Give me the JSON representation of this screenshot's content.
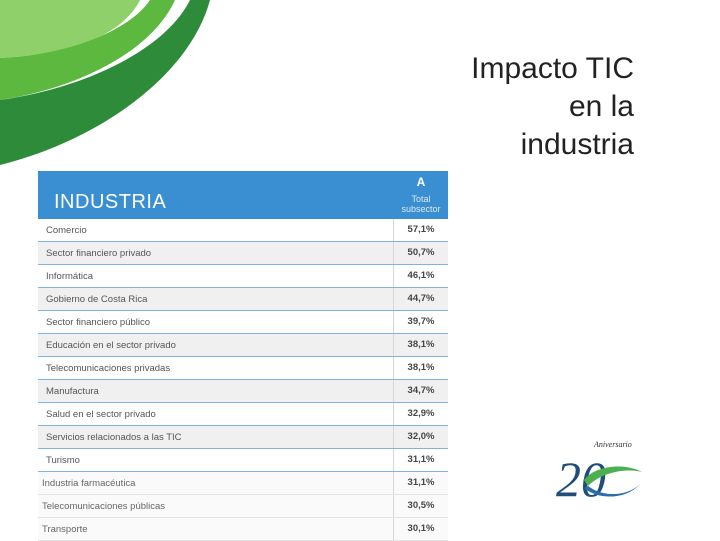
{
  "slide": {
    "title_lines": [
      "Impacto TIC",
      "en la",
      "industria"
    ]
  },
  "table": {
    "header_label": "INDUSTRIA",
    "column_letter": "A",
    "column_sub_1": "Total",
    "column_sub_2": "subsector",
    "rows": [
      {
        "label": "Comercio",
        "value": "57,1%"
      },
      {
        "label": "Sector financiero privado",
        "value": "50,7%"
      },
      {
        "label": "Informática",
        "value": "46,1%"
      },
      {
        "label": "Gobierno de Costa Rica",
        "value": "44,7%"
      },
      {
        "label": "Sector financiero público",
        "value": "39,7%"
      },
      {
        "label": "Educación en el sector privado",
        "value": "38,1%"
      },
      {
        "label": "Telecomunicaciones privadas",
        "value": "38,1%"
      },
      {
        "label": "Manufactura",
        "value": "34,7%"
      },
      {
        "label": "Salud en el sector privado",
        "value": "32,9%"
      },
      {
        "label": "Servicios relacionados a las TIC",
        "value": "32,0%"
      },
      {
        "label": "Turismo",
        "value": "31,1%"
      },
      {
        "label": "Industria farmacéutica",
        "value": "31,1%"
      },
      {
        "label": "Telecomunicaciones públicas",
        "value": "30,5%"
      },
      {
        "label": "Transporte",
        "value": "30,1%"
      }
    ]
  },
  "logo": {
    "word": "Aniversario",
    "number": "20"
  },
  "colors": {
    "header_blue": "#3a8fd3",
    "swoosh_dark": "#2e8b3a",
    "swoosh_light": "#6cc04a"
  }
}
